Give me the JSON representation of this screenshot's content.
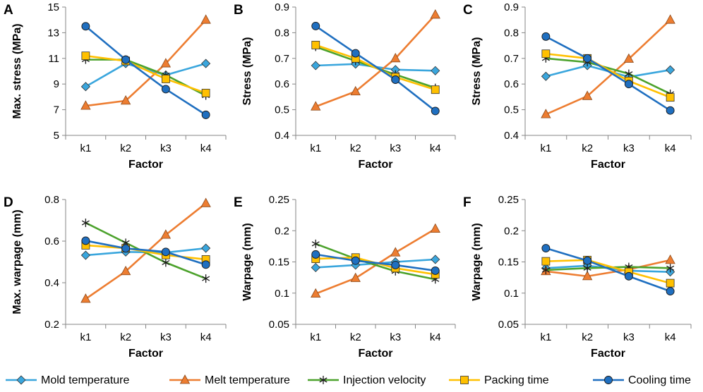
{
  "chart_data": {
    "type": "line",
    "series_styles": [
      {
        "name": "Mold temperature",
        "color": "#3aa6dd",
        "marker": "diamond"
      },
      {
        "name": "Melt temperature",
        "color": "#ed7d31",
        "marker": "triangle"
      },
      {
        "name": "Injection velocity",
        "color": "#4ca22c",
        "marker": "star"
      },
      {
        "name": "Packing time",
        "color": "#ffc000",
        "marker": "square"
      },
      {
        "name": "Cooling time",
        "color": "#1f6fc0",
        "marker": "circle"
      }
    ],
    "legend": [
      "Mold temperature",
      "Melt temperature",
      "Injection velocity",
      "Packing time",
      "Cooling time"
    ],
    "legend_position": "bottom",
    "panels": [
      {
        "letter": "A",
        "xlabel": "Factor",
        "ylabel": "Max. stress (MPa)",
        "categories": [
          "k1",
          "k2",
          "k3",
          "k4"
        ],
        "ylim": [
          5,
          15
        ],
        "yticks": [
          5,
          7,
          9,
          11,
          13,
          15
        ],
        "ytick_labels": [
          "5",
          "7",
          "9",
          "11",
          "13",
          "15"
        ],
        "series": [
          {
            "name": "Mold temperature",
            "values": [
              8.8,
              10.6,
              9.7,
              10.6
            ]
          },
          {
            "name": "Melt temperature",
            "values": [
              7.3,
              7.7,
              10.6,
              14.0
            ]
          },
          {
            "name": "Injection velocity",
            "values": [
              10.9,
              10.9,
              9.7,
              8.1
            ]
          },
          {
            "name": "Packing time",
            "values": [
              11.2,
              10.8,
              9.4,
              8.3
            ]
          },
          {
            "name": "Cooling time",
            "values": [
              13.5,
              10.9,
              8.6,
              6.6
            ]
          }
        ]
      },
      {
        "letter": "B",
        "xlabel": "Factor",
        "ylabel": "Stress (MPa)",
        "categories": [
          "k1",
          "k2",
          "k3",
          "k4"
        ],
        "ylim": [
          0.4,
          0.9
        ],
        "yticks": [
          0.4,
          0.5,
          0.6,
          0.7,
          0.8,
          0.9
        ],
        "ytick_labels": [
          "0.4",
          "0.5",
          "0.6",
          "0.7",
          "0.8",
          "0.9"
        ],
        "series": [
          {
            "name": "Mold temperature",
            "values": [
              0.672,
              0.678,
              0.656,
              0.652
            ]
          },
          {
            "name": "Melt temperature",
            "values": [
              0.512,
              0.571,
              0.7,
              0.87
            ]
          },
          {
            "name": "Injection velocity",
            "values": [
              0.745,
              0.69,
              0.637,
              0.585
            ]
          },
          {
            "name": "Packing time",
            "values": [
              0.752,
              0.7,
              0.627,
              0.578
            ]
          },
          {
            "name": "Cooling time",
            "values": [
              0.826,
              0.72,
              0.617,
              0.495
            ]
          }
        ]
      },
      {
        "letter": "C",
        "xlabel": "Factor",
        "ylabel": "Stress (MPa)",
        "categories": [
          "k1",
          "k2",
          "k3",
          "k4"
        ],
        "ylim": [
          0.4,
          0.9
        ],
        "yticks": [
          0.4,
          0.5,
          0.6,
          0.7,
          0.8,
          0.9
        ],
        "ytick_labels": [
          "0.4",
          "0.5",
          "0.6",
          "0.7",
          "0.8",
          "0.9"
        ],
        "series": [
          {
            "name": "Mold temperature",
            "values": [
              0.63,
              0.672,
              0.628,
              0.655
            ]
          },
          {
            "name": "Melt temperature",
            "values": [
              0.482,
              0.553,
              0.698,
              0.85
            ]
          },
          {
            "name": "Injection velocity",
            "values": [
              0.7,
              0.685,
              0.64,
              0.562
            ]
          },
          {
            "name": "Packing time",
            "values": [
              0.718,
              0.7,
              0.612,
              0.548
            ]
          },
          {
            "name": "Cooling time",
            "values": [
              0.785,
              0.7,
              0.6,
              0.497
            ]
          }
        ]
      },
      {
        "letter": "D",
        "xlabel": "Factor",
        "ylabel": "Max. warpage (mm)",
        "categories": [
          "k1",
          "k2",
          "k3",
          "k4"
        ],
        "ylim": [
          0.2,
          0.8
        ],
        "yticks": [
          0.2,
          0.4,
          0.6,
          0.8
        ],
        "ytick_labels": [
          "0.2",
          "0.4",
          "0.6",
          "0.8"
        ],
        "series": [
          {
            "name": "Mold temperature",
            "values": [
              0.532,
              0.548,
              0.545,
              0.566
            ]
          },
          {
            "name": "Melt temperature",
            "values": [
              0.322,
              0.455,
              0.63,
              0.782
            ]
          },
          {
            "name": "Injection velocity",
            "values": [
              0.688,
              0.592,
              0.497,
              0.42
            ]
          },
          {
            "name": "Packing time",
            "values": [
              0.58,
              0.566,
              0.533,
              0.512
            ]
          },
          {
            "name": "Cooling time",
            "values": [
              0.602,
              0.565,
              0.548,
              0.487
            ]
          }
        ]
      },
      {
        "letter": "E",
        "xlabel": "Factor",
        "ylabel": "Warpage (mm)",
        "categories": [
          "k1",
          "k2",
          "k3",
          "k4"
        ],
        "ylim": [
          0.05,
          0.25
        ],
        "yticks": [
          0.05,
          0.1,
          0.15,
          0.2,
          0.25
        ],
        "ytick_labels": [
          "0.05",
          "0.1",
          "0.15",
          "0.2",
          "0.25"
        ],
        "series": [
          {
            "name": "Mold temperature",
            "values": [
              0.141,
              0.145,
              0.15,
              0.154
            ]
          },
          {
            "name": "Melt temperature",
            "values": [
              0.099,
              0.124,
              0.165,
              0.203
            ]
          },
          {
            "name": "Injection velocity",
            "values": [
              0.179,
              0.155,
              0.135,
              0.122
            ]
          },
          {
            "name": "Packing time",
            "values": [
              0.155,
              0.157,
              0.14,
              0.13
            ]
          },
          {
            "name": "Cooling time",
            "values": [
              0.162,
              0.152,
              0.145,
              0.136
            ]
          }
        ]
      },
      {
        "letter": "F",
        "xlabel": "Factor",
        "ylabel": "Warpage (mm)",
        "categories": [
          "k1",
          "k2",
          "k3",
          "k4"
        ],
        "ylim": [
          0.05,
          0.25
        ],
        "yticks": [
          0.05,
          0.1,
          0.15,
          0.2,
          0.25
        ],
        "ytick_labels": [
          "0.05",
          "0.1",
          "0.15",
          "0.2",
          "0.25"
        ],
        "series": [
          {
            "name": "Mold temperature",
            "values": [
              0.14,
              0.144,
              0.136,
              0.134
            ]
          },
          {
            "name": "Melt temperature",
            "values": [
              0.135,
              0.127,
              0.138,
              0.153
            ]
          },
          {
            "name": "Injection velocity",
            "values": [
              0.137,
              0.14,
              0.142,
              0.14
            ]
          },
          {
            "name": "Packing time",
            "values": [
              0.151,
              0.153,
              0.134,
              0.116
            ]
          },
          {
            "name": "Cooling time",
            "values": [
              0.172,
              0.152,
              0.127,
              0.103
            ]
          }
        ]
      }
    ]
  }
}
